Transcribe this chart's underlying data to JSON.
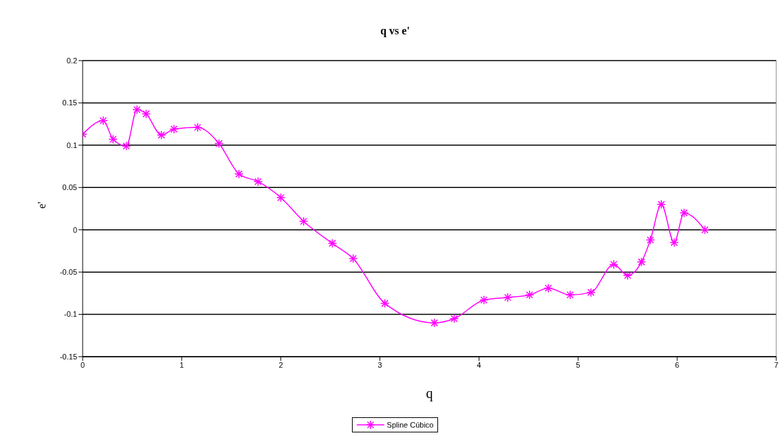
{
  "chart_data": {
    "type": "line",
    "title": "q vs e'",
    "xlabel": "q",
    "ylabel": "e'",
    "xlim": [
      0,
      7
    ],
    "xticks": [
      0,
      1,
      2,
      3,
      4,
      5,
      6,
      7
    ],
    "ylim": [
      -0.15,
      0.2
    ],
    "yticks": [
      -0.15,
      -0.1,
      -0.05,
      0,
      0.05,
      0.1,
      0.15,
      0.2
    ],
    "grid": "y",
    "legend": "bottom",
    "marker": "cross",
    "line_style": "solid",
    "x": [
      0,
      0.207,
      0.307,
      0.441,
      0.548,
      0.641,
      0.795,
      0.922,
      1.16,
      1.376,
      1.577,
      1.77,
      2.0,
      2.23,
      2.52,
      2.73,
      3.05,
      3.55,
      3.75,
      4.05,
      4.29,
      4.51,
      4.7,
      4.92,
      5.13,
      5.36,
      5.5,
      5.64,
      5.73,
      5.84,
      5.97,
      6.07,
      6.28
    ],
    "series": [
      {
        "name": "Spline Cúbico",
        "color": "#ff00ff",
        "values": [
          0.113,
          0.129,
          0.107,
          0.099,
          0.142,
          0.137,
          0.112,
          0.119,
          0.121,
          0.102,
          0.066,
          0.057,
          0.038,
          0.01,
          -0.016,
          -0.034,
          -0.087,
          -0.11,
          -0.105,
          -0.083,
          -0.08,
          -0.077,
          -0.069,
          -0.077,
          -0.074,
          -0.041,
          -0.054,
          -0.038,
          -0.012,
          0.03,
          -0.015,
          0.02,
          0.0
        ]
      }
    ]
  }
}
